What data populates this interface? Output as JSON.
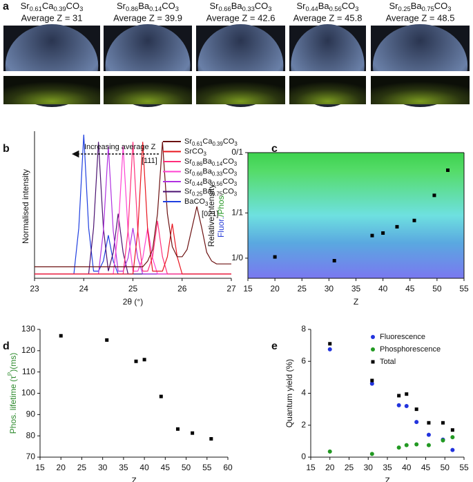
{
  "panel_a": {
    "panel": "a",
    "photos": [
      {
        "composition": "Sr0.61Ca0.39CO3",
        "average_z": "Average Z = 31"
      },
      {
        "composition": "Sr0.86Ba0.14CO3",
        "average_z": "Average Z = 39.9"
      },
      {
        "composition": "Sr0.66Ba0.33CO3",
        "average_z": "Average Z = 42.6"
      },
      {
        "composition": "Sr0.44Ba0.56CO3",
        "average_z": "Average Z = 45.8"
      },
      {
        "composition": "Sr0.25Ba0.75CO3",
        "average_z": "Average Z = 48.5"
      }
    ]
  },
  "chart_data": [
    {
      "type": "line",
      "panel": "b",
      "xlabel": "2θ (°)",
      "ylabel": "Normalised intensity",
      "annotations": [
        "Increasing average Z",
        "[111]",
        "[021]"
      ],
      "xlim": [
        23,
        27
      ],
      "xticks": [
        23,
        24,
        25,
        26,
        27
      ],
      "ylim": [
        0,
        1
      ],
      "legend": "upper right",
      "x": [
        23,
        23.1,
        23.2,
        23.3,
        23.4,
        23.5,
        23.6,
        23.7,
        23.8,
        23.9,
        24,
        24.1,
        24.2,
        24.3,
        24.4,
        24.5,
        24.6,
        24.7,
        24.8,
        24.9,
        25,
        25.1,
        25.2,
        25.3,
        25.4,
        25.5,
        25.6,
        25.7,
        25.8,
        25.9,
        26,
        26.1,
        26.2,
        26.3,
        26.4,
        26.5,
        26.6,
        26.7,
        26.8,
        26.9,
        27
      ],
      "series": [
        {
          "name": "Sr0.61Ca0.39CO3",
          "color": "#6b1010",
          "values": [
            0.08,
            0.08,
            0.08,
            0.08,
            0.08,
            0.08,
            0.08,
            0.08,
            0.08,
            0.08,
            0.08,
            0.08,
            0.08,
            0.08,
            0.08,
            0.08,
            0.08,
            0.08,
            0.08,
            0.08,
            0.08,
            0.08,
            0.08,
            0.12,
            0.2,
            0.45,
            0.95,
            0.45,
            0.22,
            0.15,
            0.15,
            0.2,
            0.35,
            0.5,
            0.35,
            0.18,
            0.12,
            0.1,
            0.1,
            0.1,
            0.1
          ]
        },
        {
          "name": "SrCO3",
          "color": "#e8141e",
          "values": [
            0.03,
            0.03,
            0.03,
            0.03,
            0.03,
            0.03,
            0.03,
            0.03,
            0.03,
            0.03,
            0.03,
            0.03,
            0.03,
            0.03,
            0.03,
            0.03,
            0.03,
            0.03,
            0.03,
            0.03,
            0.03,
            0.33,
            0.95,
            0.33,
            0.05,
            0.05,
            0.05,
            0.15,
            0.38,
            0.15,
            0.03,
            0.03,
            0.03,
            0.03,
            0.03,
            0.03,
            0.03,
            0.03,
            0.03,
            0.03,
            0.03
          ]
        },
        {
          "name": "Sr0.86Ba0.14CO3",
          "color": "#ff2d7a",
          "values": [
            0.03,
            0.03,
            0.03,
            0.03,
            0.03,
            0.03,
            0.03,
            0.03,
            0.03,
            0.03,
            0.03,
            0.03,
            0.03,
            0.03,
            0.03,
            0.03,
            0.03,
            0.03,
            0.03,
            0.33,
            0.95,
            0.33,
            0.05,
            0.05,
            0.15,
            0.4,
            0.15,
            0.03,
            0.03,
            0.03,
            0.03,
            0.03,
            0.03,
            0.03,
            0.03,
            0.03,
            0.03,
            0.03,
            0.03,
            0.03,
            0.03
          ]
        },
        {
          "name": "Sr0.66Ba0.33CO3",
          "color": "#ff40d0",
          "values": [
            0.03,
            0.03,
            0.03,
            0.03,
            0.03,
            0.03,
            0.03,
            0.03,
            0.03,
            0.03,
            0.03,
            0.03,
            0.03,
            0.03,
            0.03,
            0.03,
            0.03,
            0.33,
            0.92,
            0.33,
            0.05,
            0.05,
            0.14,
            0.35,
            0.14,
            0.03,
            0.03,
            0.03,
            0.03,
            0.03,
            0.03,
            0.03,
            0.03,
            0.03,
            0.03,
            0.03,
            0.03,
            0.03,
            0.03,
            0.03,
            0.03
          ]
        },
        {
          "name": "Sr0.44Ba0.56CO3",
          "color": "#b030e0",
          "values": [
            0.03,
            0.03,
            0.03,
            0.03,
            0.03,
            0.03,
            0.03,
            0.03,
            0.03,
            0.03,
            0.03,
            0.03,
            0.03,
            0.03,
            0.33,
            0.92,
            0.33,
            0.05,
            0.05,
            0.14,
            0.35,
            0.14,
            0.03,
            0.03,
            0.03,
            0.03,
            0.03,
            0.03,
            0.03,
            0.03,
            0.03,
            0.03,
            0.03,
            0.03,
            0.03,
            0.03,
            0.03,
            0.03,
            0.03,
            0.03,
            0.03
          ]
        },
        {
          "name": "Sr0.25Ba0.75CO3",
          "color": "#4a1070",
          "values": [
            0.03,
            0.03,
            0.03,
            0.03,
            0.03,
            0.03,
            0.03,
            0.03,
            0.03,
            0.03,
            0.03,
            0.03,
            0.35,
            0.95,
            0.35,
            0.05,
            0.18,
            0.45,
            0.18,
            0.03,
            0.03,
            0.03,
            0.03,
            0.03,
            0.03,
            0.03,
            0.03,
            0.03,
            0.03,
            0.03,
            0.03,
            0.03,
            0.03,
            0.03,
            0.03,
            0.03,
            0.03,
            0.03,
            0.03,
            0.03,
            0.03
          ]
        },
        {
          "name": "BaCO3",
          "color": "#1f3fe0",
          "values": [
            0.03,
            0.03,
            0.03,
            0.03,
            0.03,
            0.03,
            0.03,
            0.03,
            0.03,
            0.35,
            1,
            0.35,
            0.05,
            0.05,
            0.12,
            0.3,
            0.12,
            0.03,
            0.03,
            0.03,
            0.03,
            0.03,
            0.03,
            0.03,
            0.03,
            0.03,
            0.03,
            0.03,
            0.03,
            0.03,
            0.03,
            0.03,
            0.03,
            0.03,
            0.03,
            0.03,
            0.03,
            0.03,
            0.03,
            0.03,
            0.03
          ]
        }
      ]
    },
    {
      "type": "scatter",
      "panel": "c",
      "xlabel": "Z",
      "ylabel": "Relative intensity",
      "ylabel_colored": [
        {
          "text": "Fluor.",
          "color": "#2a3fd8"
        },
        {
          "text": "/Phos.",
          "color": "#2a9a2a"
        }
      ],
      "xlim": [
        15,
        55
      ],
      "xticks": [
        15,
        20,
        25,
        30,
        35,
        40,
        45,
        50,
        55
      ],
      "ylim": [
        0,
        1
      ],
      "yticks": [
        {
          "value": 0.16,
          "label": "1/0"
        },
        {
          "value": 0.52,
          "label": "1/1"
        },
        {
          "value": 1,
          "label": "0/1"
        }
      ],
      "series": [
        {
          "color": "#000000",
          "marker": "square",
          "x": [
            20,
            31,
            38,
            40,
            42.6,
            45.8,
            49.5,
            52
          ],
          "values": [
            0.17,
            0.14,
            0.34,
            0.36,
            0.41,
            0.46,
            0.66,
            0.86
          ]
        }
      ]
    },
    {
      "type": "scatter",
      "panel": "d",
      "xlabel": "Z",
      "ylabel_parts": [
        "Phos. lifetime (τ",
        "P",
        ")(ms)"
      ],
      "ylabel_color": "#2e8b2e",
      "xlim": [
        15,
        60
      ],
      "xticks": [
        15,
        20,
        25,
        30,
        35,
        40,
        45,
        50,
        55,
        60
      ],
      "ylim": [
        70,
        130
      ],
      "yticks": [
        70,
        80,
        90,
        100,
        110,
        120,
        130
      ],
      "series": [
        {
          "color": "#000000",
          "marker": "square",
          "x": [
            20,
            31,
            38,
            40,
            44,
            48,
            51.5,
            56
          ],
          "values": [
            127,
            125,
            115,
            115.8,
            98.5,
            83.2,
            81.3,
            78.6
          ]
        }
      ]
    },
    {
      "type": "scatter",
      "panel": "e",
      "xlabel": "Z",
      "ylabel": "Quantum yield (%)",
      "xlim": [
        15,
        55
      ],
      "xticks": [
        15,
        20,
        25,
        30,
        35,
        40,
        45,
        50,
        55
      ],
      "ylim": [
        0,
        8
      ],
      "yticks": [
        0,
        2,
        4,
        6,
        8
      ],
      "legend": "upper right",
      "series": [
        {
          "name": "Fluorescence",
          "color": "#2233dd",
          "marker": "circle",
          "x": [
            20,
            31,
            38,
            40,
            42.6,
            45.8,
            49.5,
            52
          ],
          "values": [
            6.75,
            4.6,
            3.25,
            3.2,
            2.2,
            1.4,
            1.1,
            0.45
          ]
        },
        {
          "name": "Phosphorescence",
          "color": "#229922",
          "marker": "circle",
          "x": [
            20,
            31,
            38,
            40,
            42.6,
            45.8,
            49.5,
            52
          ],
          "values": [
            0.35,
            0.2,
            0.6,
            0.75,
            0.8,
            0.75,
            1.05,
            1.25
          ]
        },
        {
          "name": "Total",
          "color": "#000000",
          "marker": "square",
          "x": [
            20,
            31,
            38,
            40,
            42.6,
            45.8,
            49.5,
            52
          ],
          "values": [
            7.1,
            4.8,
            3.85,
            3.95,
            3.0,
            2.15,
            2.15,
            1.7
          ]
        }
      ]
    }
  ]
}
